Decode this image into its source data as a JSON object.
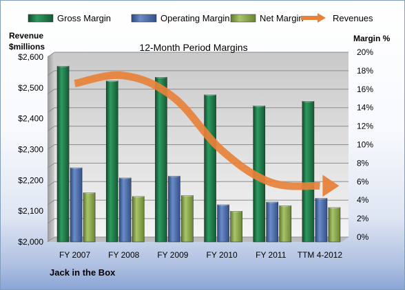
{
  "chart_data": {
    "type": "bar",
    "title": "12-Month Period Margins",
    "footer": "Jack in the Box",
    "left_axis": {
      "label_line1": "Revenue",
      "label_line2": "$millions",
      "min": 2000,
      "max": 2600,
      "step": 100,
      "ticks": [
        "$2,000",
        "$2,100",
        "$2,200",
        "$2,300",
        "$2,400",
        "$2,500",
        "$2,600"
      ]
    },
    "right_axis": {
      "label": "Margin %",
      "min": 0,
      "max": 20,
      "step": 2,
      "ticks": [
        "0%",
        "2%",
        "4%",
        "6%",
        "8%",
        "10%",
        "12%",
        "14%",
        "16%",
        "18%",
        "20%"
      ]
    },
    "categories": [
      "FY 2007",
      "FY 2008",
      "FY 2009",
      "FY 2010",
      "FY 2011",
      "TTM 4-2012"
    ],
    "series": [
      {
        "name": "Gross Margin",
        "axis": "right",
        "color": "#1f7a4a",
        "values": [
          18.8,
          17.2,
          17.6,
          15.7,
          14.5,
          15.0
        ]
      },
      {
        "name": "Operating Margin",
        "axis": "right",
        "color": "#4a6aa8",
        "values": [
          7.8,
          6.7,
          6.9,
          3.8,
          4.1,
          4.5
        ]
      },
      {
        "name": "Net Margin",
        "axis": "right",
        "color": "#8aa84e",
        "values": [
          5.1,
          4.7,
          4.8,
          3.1,
          3.7,
          3.5
        ]
      },
      {
        "name": "Revenues",
        "axis": "left",
        "type": "line",
        "color": "#e8823a",
        "values": [
          2514,
          2540,
          2471,
          2297,
          2193,
          2182
        ]
      }
    ],
    "legend": "top",
    "grid": true
  }
}
